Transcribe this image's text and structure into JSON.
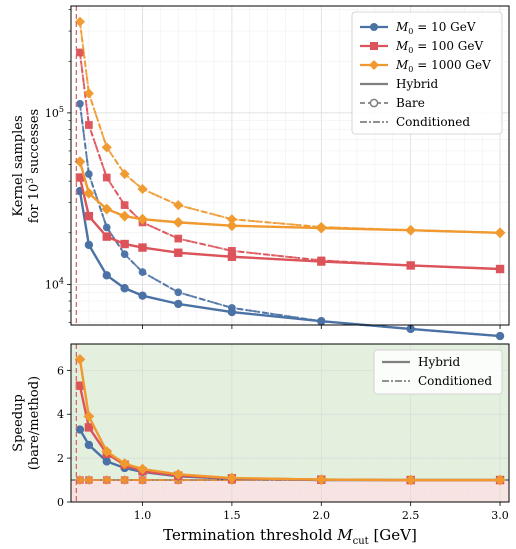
{
  "colors": {
    "M0_10": "#4b72a5",
    "M0_100": "#dc5359",
    "M0_1000": "#f0992e",
    "gray": "#808080",
    "threshold_line": "#d46a6a",
    "speedup_region": "#e3f0de",
    "slowdown_region": "#f8e3e3"
  },
  "x_axis": {
    "label": "Termination threshold ",
    "label_symbol": "M",
    "label_sub": "cut",
    "label_unit": " [GeV]",
    "ticks": [
      "1.0",
      "1.5",
      "2.0",
      "2.5",
      "3.0"
    ]
  },
  "top_panel": {
    "ylabel_line1": "Kernel samples",
    "ylabel_line2": "for 10",
    "ylabel_sup": "3",
    "ylabel_line2_end": " successes",
    "ytick_label_base": "10",
    "ytick_exp_4": "4",
    "ytick_exp_5": "5",
    "legend": {
      "series": [
        {
          "label_a": "M",
          "label_sub": "0",
          "label_b": " = 10 GeV"
        },
        {
          "label_a": "M",
          "label_sub": "0",
          "label_b": " = 100 GeV"
        },
        {
          "label_a": "M",
          "label_sub": "0",
          "label_b": " = 1000 GeV"
        }
      ],
      "styles": [
        "Hybrid",
        "Bare",
        "Conditioned"
      ]
    }
  },
  "bottom_panel": {
    "ylabel_line1": "Speedup",
    "ylabel_line2": "(bare/method)",
    "yticks": [
      "0",
      "2",
      "4",
      "6"
    ],
    "legend": {
      "styles": [
        "Hybrid",
        "Conditioned"
      ]
    }
  },
  "chart_data": [
    {
      "type": "line",
      "panel": "top",
      "yscale": "log",
      "xlim": [
        0.6,
        3.05
      ],
      "ylim": [
        5800,
        420000
      ],
      "x": [
        0.65,
        0.7,
        0.8,
        0.9,
        1.0,
        1.2,
        1.5,
        2.0,
        2.5,
        3.0
      ],
      "vline_x": 0.63,
      "series": [
        {
          "group": "M0_10",
          "style": "Hybrid",
          "values": [
            35000,
            17000,
            11300,
            9500,
            8600,
            7700,
            6900,
            6100,
            5500,
            5000
          ]
        },
        {
          "group": "M0_10",
          "style": "Bare",
          "values": [
            113000,
            44000,
            21500,
            15000,
            11800,
            9000,
            7300,
            6100,
            5500,
            5000
          ]
        },
        {
          "group": "M0_10",
          "style": "Conditioned",
          "values": [
            113000,
            44000,
            21500,
            15000,
            11800,
            9000,
            7300,
            6100,
            5500,
            5000
          ]
        },
        {
          "group": "M0_100",
          "style": "Hybrid",
          "values": [
            42000,
            25000,
            19000,
            17200,
            16400,
            15300,
            14500,
            13600,
            12900,
            12300
          ]
        },
        {
          "group": "M0_100",
          "style": "Bare",
          "values": [
            225000,
            85000,
            42000,
            29000,
            23000,
            18500,
            15700,
            13800,
            12900,
            12300
          ]
        },
        {
          "group": "M0_100",
          "style": "Conditioned",
          "values": [
            225000,
            85000,
            42000,
            29000,
            23000,
            18500,
            15700,
            13800,
            12900,
            12300
          ]
        },
        {
          "group": "M0_1000",
          "style": "Hybrid",
          "values": [
            52000,
            34000,
            27500,
            25000,
            24000,
            23000,
            22000,
            21300,
            20700,
            20000
          ]
        },
        {
          "group": "M0_1000",
          "style": "Bare",
          "values": [
            340000,
            130000,
            63000,
            44000,
            36000,
            29000,
            24000,
            21600,
            20700,
            20000
          ]
        },
        {
          "group": "M0_1000",
          "style": "Conditioned",
          "values": [
            340000,
            130000,
            63000,
            44000,
            36000,
            29000,
            24000,
            21600,
            20700,
            20000
          ]
        }
      ]
    },
    {
      "type": "line",
      "panel": "bottom",
      "yscale": "linear",
      "xlim": [
        0.6,
        3.05
      ],
      "ylim": [
        0,
        7.2
      ],
      "x": [
        0.65,
        0.7,
        0.8,
        0.9,
        1.0,
        1.2,
        1.5,
        2.0,
        2.5,
        3.0
      ],
      "hline_y": 1,
      "vline_x": 0.63,
      "series": [
        {
          "group": "M0_10",
          "style": "Hybrid",
          "values": [
            3.3,
            2.6,
            1.85,
            1.55,
            1.37,
            1.17,
            1.06,
            1.0,
            1.0,
            1.0
          ]
        },
        {
          "group": "M0_100",
          "style": "Hybrid",
          "values": [
            5.3,
            3.4,
            2.2,
            1.7,
            1.4,
            1.2,
            1.08,
            1.02,
            1.0,
            1.0
          ]
        },
        {
          "group": "M0_1000",
          "style": "Hybrid",
          "values": [
            6.5,
            3.9,
            2.3,
            1.75,
            1.5,
            1.26,
            1.09,
            1.02,
            1.0,
            1.0
          ]
        },
        {
          "group": "M0_10",
          "style": "Conditioned",
          "values": [
            1.0,
            1.0,
            1.0,
            1.0,
            1.0,
            1.0,
            1.0,
            1.0,
            1.0,
            1.0
          ]
        },
        {
          "group": "M0_100",
          "style": "Conditioned",
          "values": [
            1.0,
            1.0,
            1.0,
            1.0,
            1.0,
            1.0,
            1.0,
            1.0,
            1.0,
            1.0
          ]
        },
        {
          "group": "M0_1000",
          "style": "Conditioned",
          "values": [
            1.0,
            1.0,
            1.0,
            1.0,
            1.0,
            1.0,
            1.0,
            1.0,
            1.0,
            1.0
          ]
        }
      ]
    }
  ]
}
